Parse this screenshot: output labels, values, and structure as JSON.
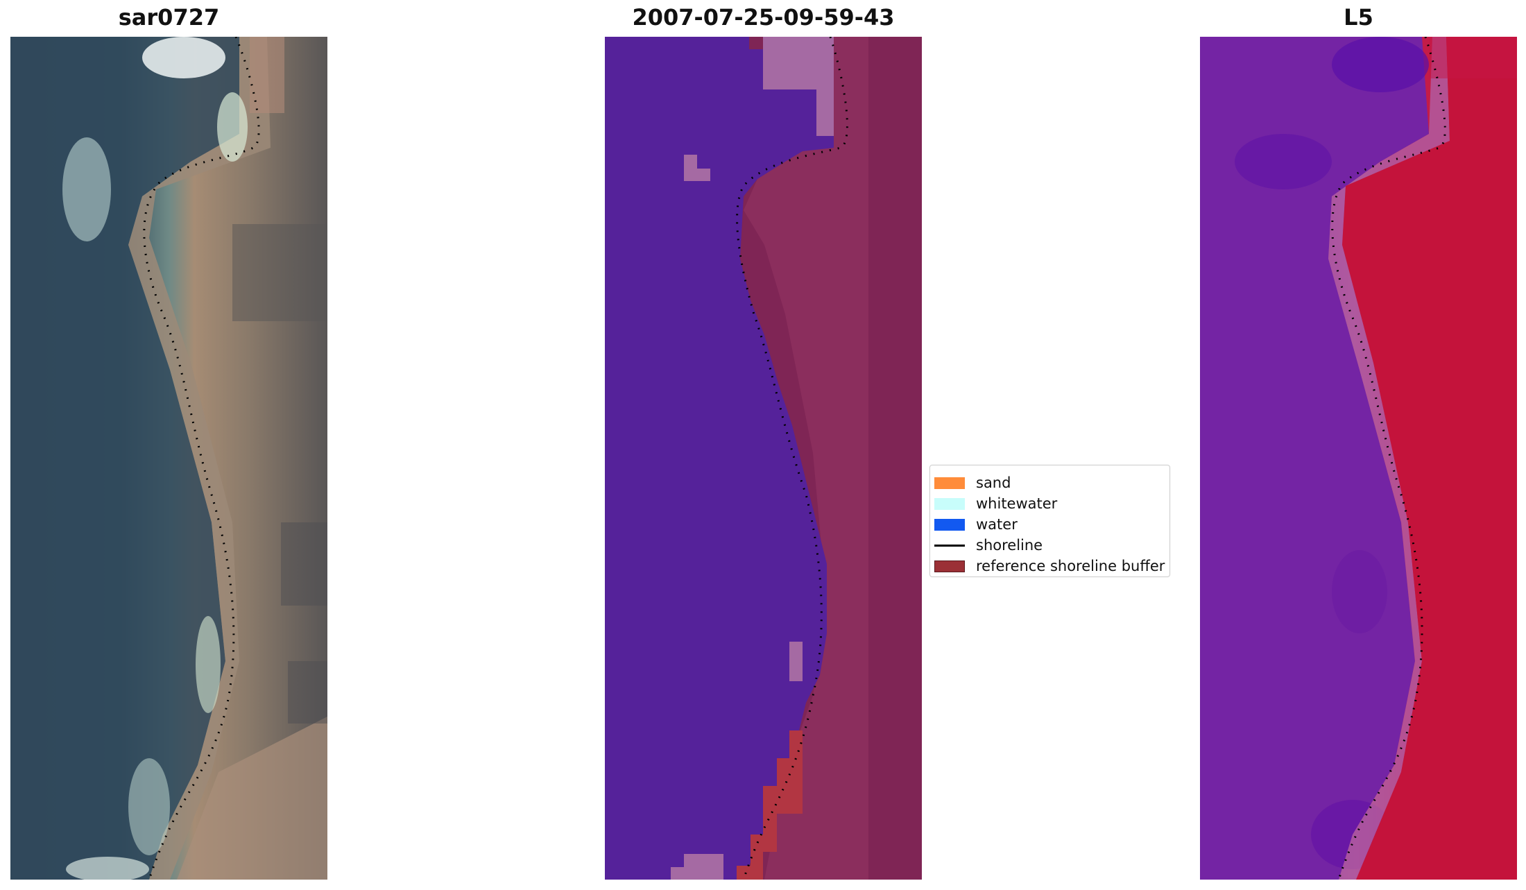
{
  "panels": [
    {
      "title": "sar0727"
    },
    {
      "title": "2007-07-25-09-59-43"
    },
    {
      "title": "L5"
    }
  ],
  "legend": {
    "items": [
      {
        "label": "sand",
        "color": "#ff8c3a",
        "kind": "patch"
      },
      {
        "label": "whitewater",
        "color": "#c8fdfb",
        "kind": "patch"
      },
      {
        "label": "water",
        "color": "#1259f0",
        "kind": "patch"
      },
      {
        "label": "shoreline",
        "color": "#000000",
        "kind": "line"
      },
      {
        "label": "reference shoreline buffer",
        "color": "#9b3036",
        "kind": "patch"
      }
    ]
  },
  "colors": {
    "rgb_water": "#2f4a5e",
    "rgb_sand": "#a98e78",
    "rgb_land": "#5b5858",
    "class_water": "#55229a",
    "class_buffer": "#b23642",
    "class_land": "#7e2456",
    "class_light": "#a56aa3",
    "index_low": "#6e1ea6",
    "index_high": "#c01034"
  }
}
